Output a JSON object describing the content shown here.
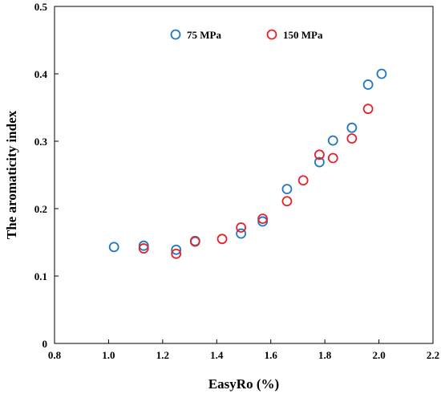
{
  "chart_data": {
    "type": "scatter",
    "title": "",
    "xlabel": "EasyRo (%)",
    "ylabel": "The aromaticity index",
    "xlim": [
      0.8,
      2.2
    ],
    "ylim": [
      0,
      0.5
    ],
    "xticks": [
      "0.8",
      "1.0",
      "1.2",
      "1.4",
      "1.6",
      "1.8",
      "2.0",
      "2.2"
    ],
    "yticks": [
      "0",
      "0.1",
      "0.2",
      "0.3",
      "0.4",
      "0.5"
    ],
    "grid": false,
    "legend_position": "top-center",
    "series": [
      {
        "name": "75 MPa",
        "color": "#1f77c4",
        "marker": "open-circle",
        "points": [
          [
            1.02,
            0.143
          ],
          [
            1.13,
            0.145
          ],
          [
            1.25,
            0.139
          ],
          [
            1.32,
            0.152
          ],
          [
            1.49,
            0.163
          ],
          [
            1.57,
            0.181
          ],
          [
            1.66,
            0.229
          ],
          [
            1.78,
            0.269
          ],
          [
            1.83,
            0.301
          ],
          [
            1.9,
            0.32
          ],
          [
            1.96,
            0.384
          ],
          [
            2.01,
            0.4
          ]
        ]
      },
      {
        "name": "150 MPa",
        "color": "#e8202a",
        "marker": "open-circle",
        "points": [
          [
            1.13,
            0.141
          ],
          [
            1.25,
            0.133
          ],
          [
            1.32,
            0.151
          ],
          [
            1.42,
            0.155
          ],
          [
            1.49,
            0.172
          ],
          [
            1.57,
            0.185
          ],
          [
            1.66,
            0.211
          ],
          [
            1.72,
            0.242
          ],
          [
            1.78,
            0.28
          ],
          [
            1.83,
            0.275
          ],
          [
            1.9,
            0.304
          ],
          [
            1.96,
            0.348
          ]
        ]
      }
    ]
  }
}
